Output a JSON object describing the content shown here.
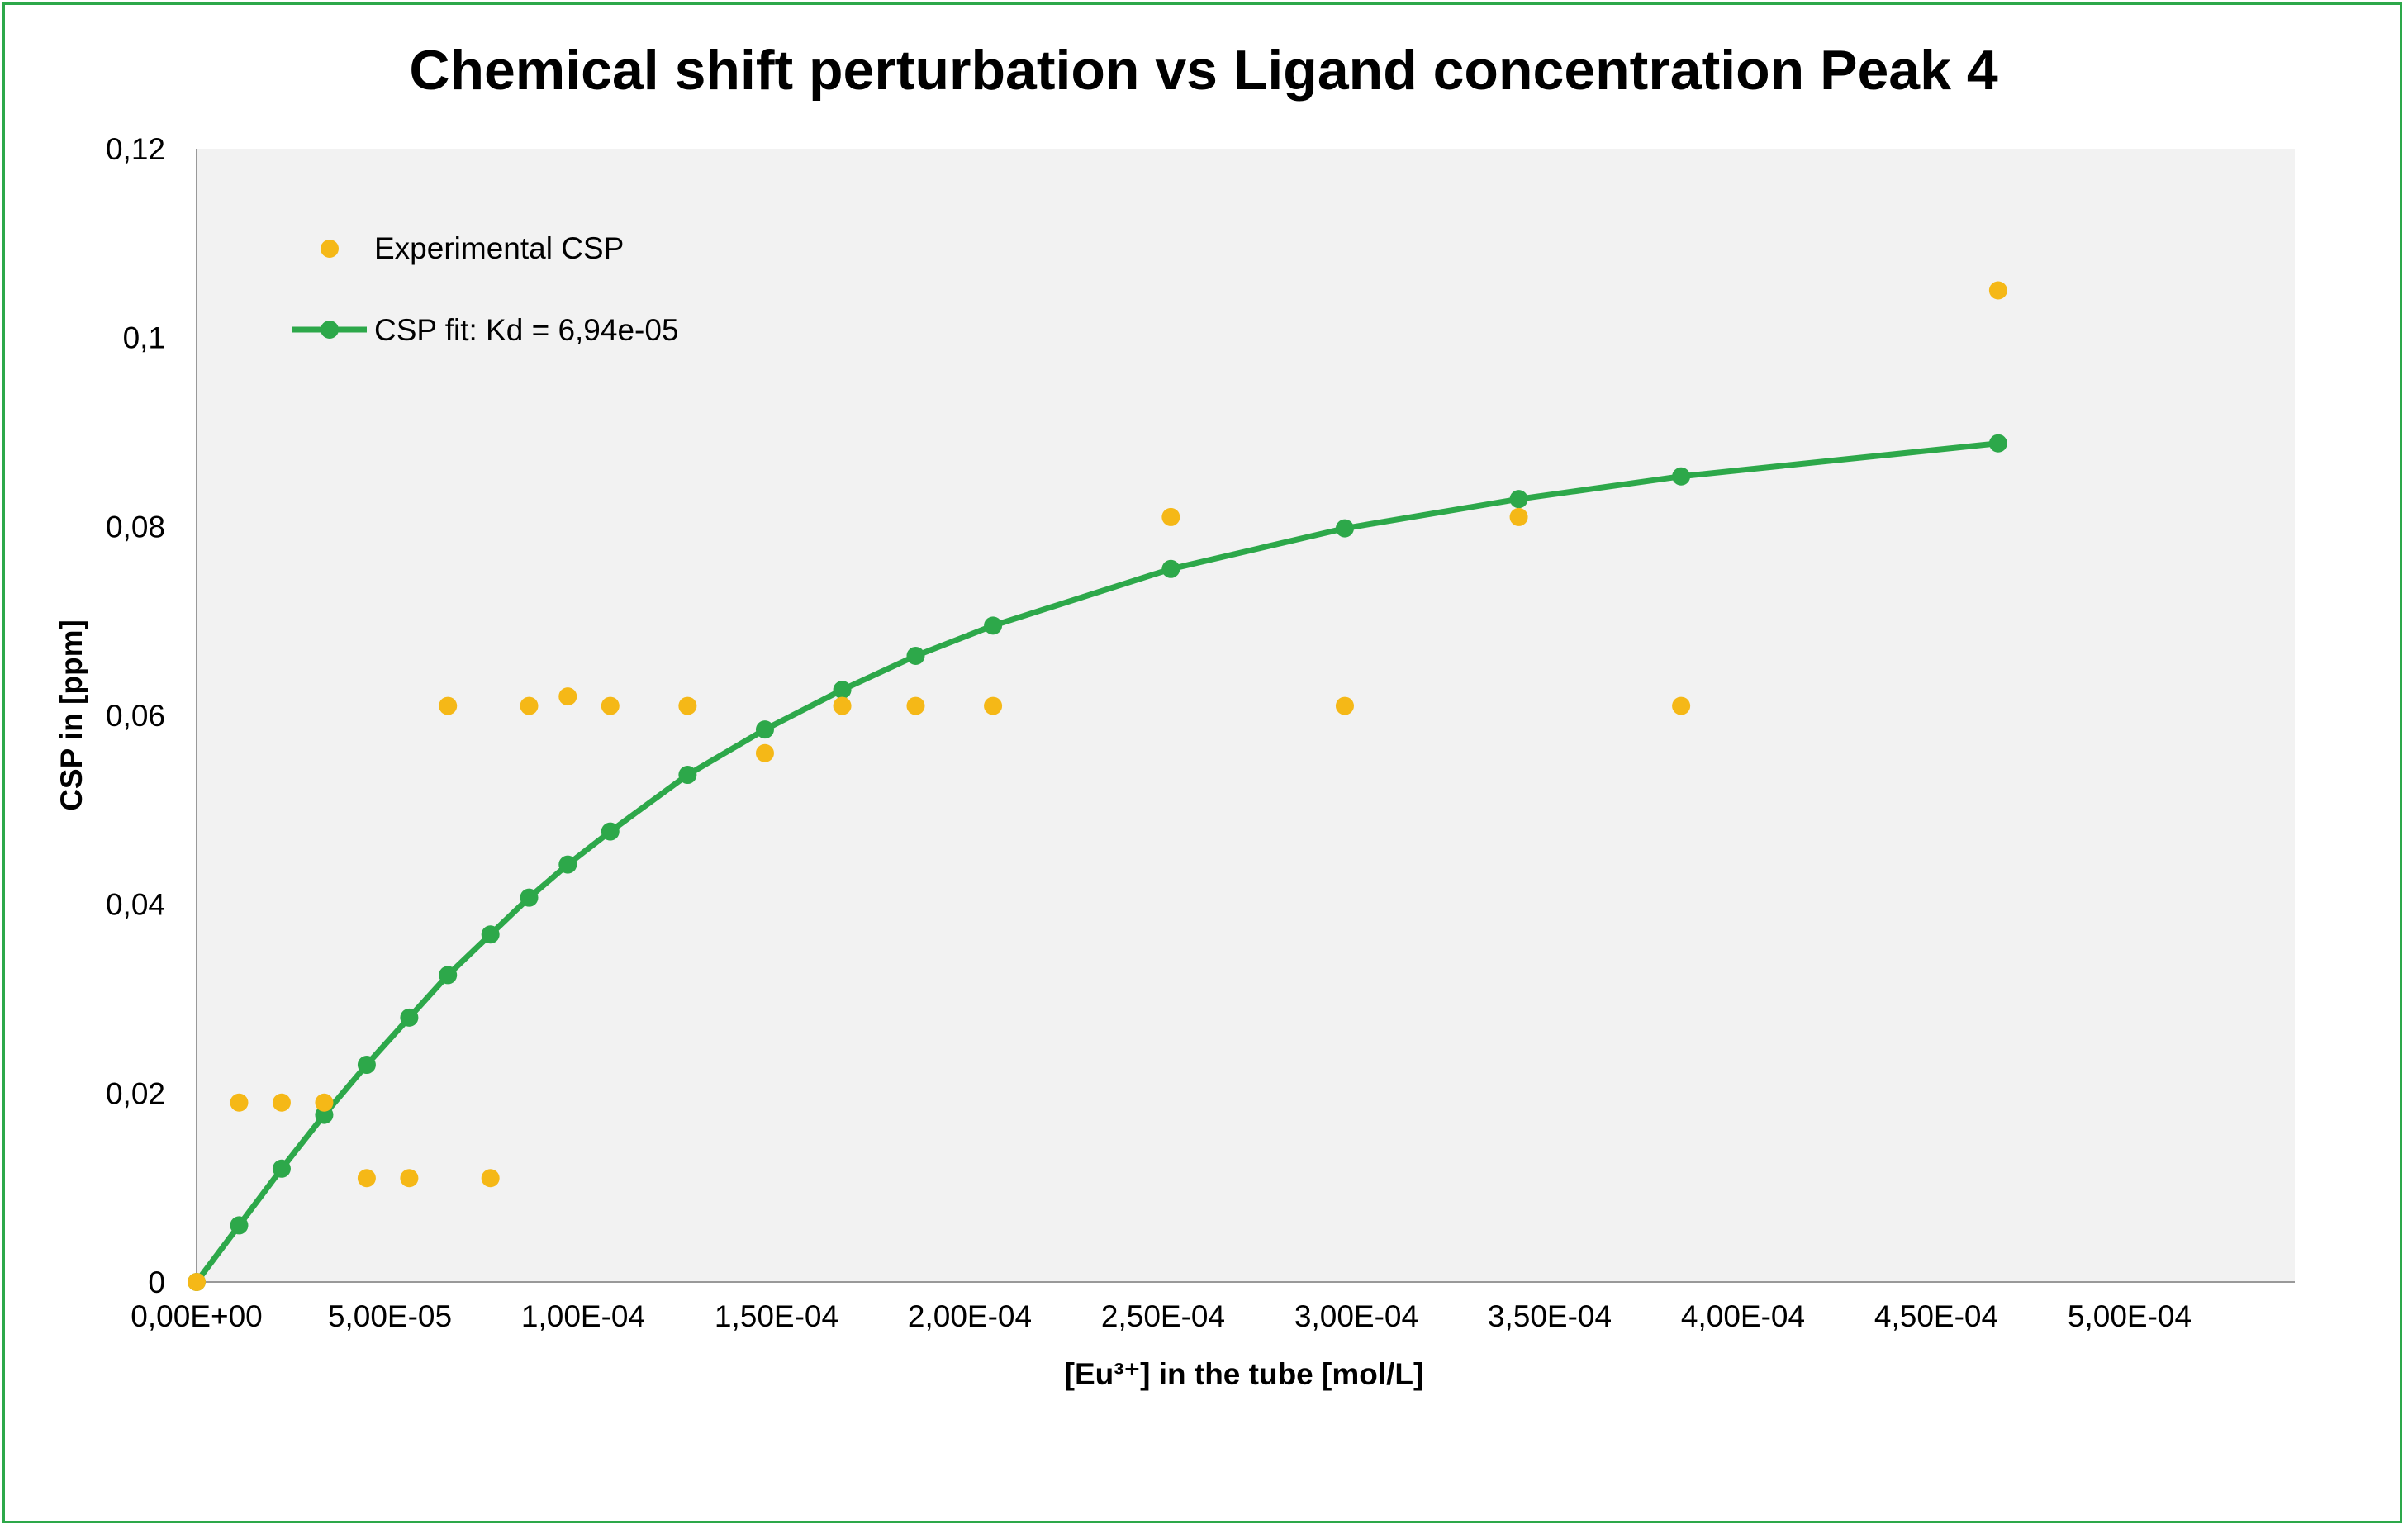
{
  "chart_data": {
    "type": "scatter",
    "title": "Chemical shift perturbation vs Ligand concentration Peak 4",
    "xlabel": "[Eu³⁺] in the tube [mol/L]",
    "ylabel": "CSP in [ppm]",
    "xlim": [
      0,
      0.0005
    ],
    "ylim": [
      0,
      0.12
    ],
    "x_tick_labels": [
      "0,00E+00",
      "5,00E-05",
      "1,00E-04",
      "1,50E-04",
      "2,00E-04",
      "2,50E-04",
      "3,00E-04",
      "3,50E-04",
      "4,00E-04",
      "4,50E-04",
      "5,00E-04"
    ],
    "y_tick_labels": [
      "0",
      "0,02",
      "0,04",
      "0,06",
      "0,08",
      "0,1",
      "0,12"
    ],
    "grid": false,
    "legend_position": "top-left",
    "colors": {
      "experimental": "#f5b817",
      "fit": "#2da84a",
      "plot_bg": "#f2f2f2",
      "frame": "#2da84a"
    },
    "series": [
      {
        "name": "Experimental CSP",
        "kind": "markers",
        "points": [
          [
            0,
            0
          ],
          [
            1.1e-05,
            0.019
          ],
          [
            2.2e-05,
            0.019
          ],
          [
            3.3e-05,
            0.019
          ],
          [
            4.4e-05,
            0.011
          ],
          [
            5.5e-05,
            0.011
          ],
          [
            6.5e-05,
            0.061
          ],
          [
            7.6e-05,
            0.011
          ],
          [
            8.6e-05,
            0.061
          ],
          [
            9.6e-05,
            0.062
          ],
          [
            0.000107,
            0.061
          ],
          [
            0.000127,
            0.061
          ],
          [
            0.000147,
            0.056
          ],
          [
            0.000167,
            0.061
          ],
          [
            0.000186,
            0.061
          ],
          [
            0.000206,
            0.061
          ],
          [
            0.000252,
            0.081
          ],
          [
            0.000297,
            0.061
          ],
          [
            0.000342,
            0.081
          ],
          [
            0.000384,
            0.061
          ],
          [
            0.000466,
            0.105
          ]
        ]
      },
      {
        "name": "CSP fit: Kd = 6,94e-05",
        "kind": "line-markers",
        "points": [
          [
            0,
            0
          ],
          [
            1.1e-05,
            0.006
          ],
          [
            2.2e-05,
            0.012
          ],
          [
            3.3e-05,
            0.0177
          ],
          [
            4.4e-05,
            0.023
          ],
          [
            5.5e-05,
            0.028
          ],
          [
            6.5e-05,
            0.0325
          ],
          [
            7.6e-05,
            0.0368
          ],
          [
            8.6e-05,
            0.0407
          ],
          [
            9.6e-05,
            0.0442
          ],
          [
            0.000107,
            0.0477
          ],
          [
            0.000127,
            0.0537
          ],
          [
            0.000147,
            0.0585
          ],
          [
            0.000167,
            0.0627
          ],
          [
            0.000186,
            0.0663
          ],
          [
            0.000206,
            0.0695
          ],
          [
            0.000252,
            0.0755
          ],
          [
            0.000297,
            0.0798
          ],
          [
            0.000342,
            0.0829
          ],
          [
            0.000384,
            0.0853
          ],
          [
            0.000466,
            0.0888
          ]
        ]
      }
    ]
  }
}
